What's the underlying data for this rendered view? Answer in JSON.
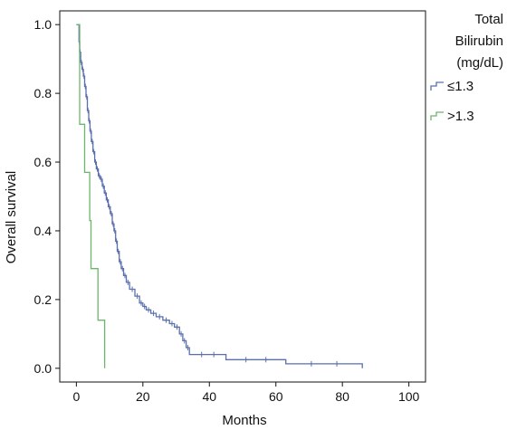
{
  "chart_data": {
    "type": "line",
    "subtype": "kaplan-meier step",
    "xlabel": "Months",
    "ylabel": "Overall survival",
    "xlim": [
      -5,
      105
    ],
    "ylim": [
      -0.04,
      1.04
    ],
    "x_ticks": [
      "0",
      "20",
      "40",
      "60",
      "80",
      "100"
    ],
    "y_ticks": [
      "0.0",
      "0.2",
      "0.4",
      "0.6",
      "0.8",
      "1.0"
    ],
    "grid": false,
    "legend": {
      "title": [
        "Total",
        "Bilirubin",
        "(mg/dL)"
      ],
      "position": "right",
      "entries": [
        "≤1.3",
        ">1.3"
      ]
    },
    "series": [
      {
        "name": "≤1.3",
        "color": "#5a6fae",
        "censor_marks": true,
        "points": [
          [
            0,
            1.0
          ],
          [
            0.8,
            0.95
          ],
          [
            1.0,
            0.92
          ],
          [
            1.3,
            0.89
          ],
          [
            1.7,
            0.87
          ],
          [
            2.1,
            0.85
          ],
          [
            2.5,
            0.82
          ],
          [
            2.9,
            0.79
          ],
          [
            3.3,
            0.75
          ],
          [
            3.7,
            0.72
          ],
          [
            4.1,
            0.69
          ],
          [
            4.5,
            0.66
          ],
          [
            5.0,
            0.63
          ],
          [
            5.5,
            0.6
          ],
          [
            6.0,
            0.58
          ],
          [
            6.6,
            0.56
          ],
          [
            7.2,
            0.55
          ],
          [
            7.8,
            0.53
          ],
          [
            8.4,
            0.51
          ],
          [
            9.0,
            0.49
          ],
          [
            9.6,
            0.47
          ],
          [
            10.2,
            0.45
          ],
          [
            10.8,
            0.42
          ],
          [
            11.3,
            0.4
          ],
          [
            11.8,
            0.37
          ],
          [
            12.3,
            0.34
          ],
          [
            12.9,
            0.31
          ],
          [
            13.5,
            0.29
          ],
          [
            14.2,
            0.27
          ],
          [
            15.0,
            0.25
          ],
          [
            16.0,
            0.23
          ],
          [
            17.6,
            0.21
          ],
          [
            19.0,
            0.19
          ],
          [
            20.0,
            0.18
          ],
          [
            21.0,
            0.17
          ],
          [
            22.4,
            0.16
          ],
          [
            24.0,
            0.15
          ],
          [
            26.0,
            0.14
          ],
          [
            28.0,
            0.13
          ],
          [
            29.5,
            0.12
          ],
          [
            31.0,
            0.1
          ],
          [
            32.0,
            0.08
          ],
          [
            33.0,
            0.06
          ],
          [
            34.0,
            0.04
          ],
          [
            45.0,
            0.025
          ],
          [
            63.0,
            0.013
          ],
          [
            86.0,
            0.0
          ]
        ]
      },
      {
        "name": ">1.3",
        "color": "#6cb56c",
        "censor_marks": false,
        "points": [
          [
            0,
            1.0
          ],
          [
            1.0,
            0.71
          ],
          [
            2.5,
            0.57
          ],
          [
            4.0,
            0.43
          ],
          [
            4.4,
            0.29
          ],
          [
            6.5,
            0.14
          ],
          [
            8.5,
            0.0
          ]
        ]
      }
    ]
  }
}
